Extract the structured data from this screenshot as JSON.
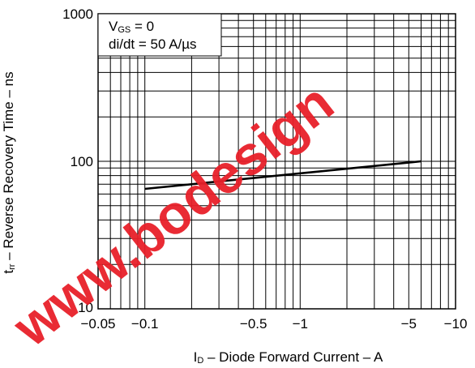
{
  "chart_data": {
    "type": "line",
    "title": "",
    "xlabel": {
      "main": "I",
      "sub": "D",
      "rest": " – Diode Forward Current – A"
    },
    "ylabel": {
      "main": "t",
      "sub": "rr",
      "rest": " – Reverse Recovery Time – ns"
    },
    "x_scale": "log",
    "y_scale": "log",
    "xlim": [
      -0.05,
      -10
    ],
    "ylim": [
      10,
      1000
    ],
    "x_ticks": [
      {
        "value": -0.05,
        "label": "−0.05"
      },
      {
        "value": -0.1,
        "label": "−0.1"
      },
      {
        "value": -0.5,
        "label": "−0.5"
      },
      {
        "value": -1,
        "label": "−1"
      },
      {
        "value": -5,
        "label": "−5"
      },
      {
        "value": -10,
        "label": "−10"
      }
    ],
    "y_ticks": [
      {
        "value": 10,
        "label": "10"
      },
      {
        "value": 100,
        "label": "100"
      },
      {
        "value": 1000,
        "label": "1000"
      }
    ],
    "grid": true,
    "annotation": {
      "line1": {
        "main": "V",
        "sub": "GS",
        "rest": " = 0"
      },
      "line2": "di/dt = 50 A/µs"
    },
    "series": [
      {
        "color": "#000000",
        "x": [
          -0.1,
          -6
        ],
        "y": [
          65,
          100
        ]
      }
    ],
    "watermark": {
      "text": "www.bodesign",
      "color": "#e8202a"
    }
  }
}
